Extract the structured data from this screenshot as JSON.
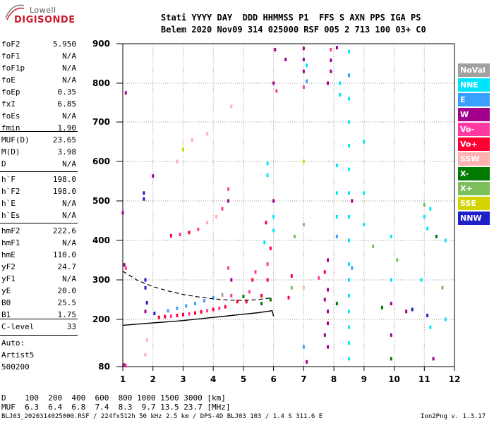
{
  "logo": {
    "line1": "Lowell",
    "line2": "DIGISONDE"
  },
  "header": {
    "line1": "Stati YYYY DAY  DDD HHMMSS P1  FFS S AXN PPS IGA PS",
    "line2": "Belem 2020 Nov09 314 025000 RSF 005 2 713 100 03+ C0"
  },
  "params_group1": [
    {
      "name": "foF2",
      "value": "5.950"
    },
    {
      "name": "foF1",
      "value": "N/A"
    },
    {
      "name": "foF1p",
      "value": "N/A"
    },
    {
      "name": "foE",
      "value": "N/A"
    },
    {
      "name": "foEp",
      "value": "0.35"
    },
    {
      "name": "fxI",
      "value": "6.85"
    },
    {
      "name": "foEs",
      "value": "N/A"
    },
    {
      "name": "fmin",
      "value": "1.90"
    }
  ],
  "params_group2": [
    {
      "name": "MUF(D)",
      "value": "23.65"
    },
    {
      "name": "M(D)",
      "value": "3.98"
    },
    {
      "name": "D",
      "value": "N/A"
    }
  ],
  "params_group3": [
    {
      "name": "h`F",
      "value": "198.0"
    },
    {
      "name": "h`F2",
      "value": "198.0"
    },
    {
      "name": "h`E",
      "value": "N/A"
    },
    {
      "name": "h`Es",
      "value": "N/A"
    }
  ],
  "params_group4": [
    {
      "name": "hmF2",
      "value": "222.6"
    },
    {
      "name": "hmF1",
      "value": "N/A"
    },
    {
      "name": "hmE",
      "value": "110.0"
    },
    {
      "name": "yF2",
      "value": "24.7"
    },
    {
      "name": "yF1",
      "value": "N/A"
    },
    {
      "name": "yE",
      "value": "20.0"
    },
    {
      "name": "B0",
      "value": "25.5"
    },
    {
      "name": "B1",
      "value": "1.75"
    }
  ],
  "params_group5": [
    {
      "name": "C-level",
      "value": "33"
    }
  ],
  "auto": {
    "line1": "Auto:",
    "line2": "Artist5",
    "line3": "500200"
  },
  "legend": [
    {
      "label": "NoVal",
      "color": "#a0a0a0"
    },
    {
      "label": "NNE",
      "color": "#00e5ff"
    },
    {
      "label": "E",
      "color": "#3aa0ff"
    },
    {
      "label": "W",
      "color": "#a0008c"
    },
    {
      "label": "Vo-",
      "color": "#ff3aa0"
    },
    {
      "label": "Vo+",
      "color": "#ff0033"
    },
    {
      "label": "SSW",
      "color": "#ffb0b0"
    },
    {
      "label": "X-",
      "color": "#007a00"
    },
    {
      "label": "X+",
      "color": "#7abf5a"
    },
    {
      "label": "SSE",
      "color": "#d4d400"
    },
    {
      "label": "NNW",
      "color": "#2020c8"
    }
  ],
  "muf_table": {
    "row1": "D    100  200  400  600  800 1000 1500 3000 [km]",
    "row2": "MUF  6.3  6.4  6.8  7.4  8.3  9.7 13.5 23.7 [MHz]"
  },
  "footer": {
    "left": "BLJ03_2020314025000.RSF / 224fx512h 50 kHz 2.5 km / DPS-4D BLJ03 103 / 1.4 S 311.6 E",
    "right": "Ion2Png v. 1.3.17"
  },
  "chart_data": {
    "type": "scatter",
    "title": "",
    "xlabel": "",
    "ylabel": "",
    "xlim": [
      1,
      12
    ],
    "ylim": [
      80,
      900
    ],
    "x_ticks": [
      "1",
      "2",
      "3",
      "4",
      "5",
      "6",
      "7",
      "8",
      "9",
      "10",
      "11",
      "12"
    ],
    "y_ticks": [
      "80",
      "200",
      "300",
      "400",
      "500",
      "600",
      "700",
      "800",
      "900"
    ],
    "grid": true,
    "legend_position": "right",
    "y_tick_values": [
      80,
      200,
      300,
      400,
      500,
      600,
      700,
      800,
      900
    ],
    "ionogram_trace_solid": {
      "name": "",
      "x": [
        1.0,
        1.5,
        2.0,
        2.5,
        3.0,
        3.5,
        4.0,
        4.5,
        5.0,
        5.5,
        5.95,
        6.0
      ],
      "y": [
        185,
        188,
        191,
        194,
        197,
        201,
        205,
        209,
        213,
        217,
        222,
        208
      ]
    },
    "ionogram_trace_dashed": {
      "name": "",
      "x": [
        1.0,
        1.5,
        2.0,
        2.5,
        3.0,
        3.5,
        4.0,
        4.5,
        5.0,
        5.5,
        5.95
      ],
      "y": [
        322,
        298,
        283,
        272,
        263,
        257,
        252,
        249,
        248,
        250,
        255
      ]
    },
    "echo_points": [
      {
        "x": 1.1,
        "y": 775,
        "color": "#a0008c"
      },
      {
        "x": 1.0,
        "y": 470,
        "color": "#a0008c"
      },
      {
        "x": 1.05,
        "y": 338,
        "color": "#a0008c"
      },
      {
        "x": 1.1,
        "y": 330,
        "color": "#ff3aa0"
      },
      {
        "x": 1.05,
        "y": 84,
        "color": "#a0008c"
      },
      {
        "x": 1.1,
        "y": 82,
        "color": "#ff3aa0"
      },
      {
        "x": 1.7,
        "y": 520,
        "color": "#2020c8"
      },
      {
        "x": 1.7,
        "y": 505,
        "color": "#2020c8"
      },
      {
        "x": 1.75,
        "y": 300,
        "color": "#2020c8"
      },
      {
        "x": 1.75,
        "y": 280,
        "color": "#2020c8"
      },
      {
        "x": 1.8,
        "y": 242,
        "color": "#2020c8"
      },
      {
        "x": 1.75,
        "y": 220,
        "color": "#a0008c"
      },
      {
        "x": 1.8,
        "y": 148,
        "color": "#ffb0b0"
      },
      {
        "x": 1.75,
        "y": 110,
        "color": "#ffb0b0"
      },
      {
        "x": 2.0,
        "y": 563,
        "color": "#a0008c"
      },
      {
        "x": 2.05,
        "y": 215,
        "color": "#2020c8"
      },
      {
        "x": 2.2,
        "y": 205,
        "color": "#ff0033"
      },
      {
        "x": 2.4,
        "y": 207,
        "color": "#ff0033"
      },
      {
        "x": 2.6,
        "y": 208,
        "color": "#ff3aa0"
      },
      {
        "x": 2.8,
        "y": 210,
        "color": "#ff0033"
      },
      {
        "x": 3.0,
        "y": 212,
        "color": "#ff0033"
      },
      {
        "x": 3.2,
        "y": 214,
        "color": "#ff3aa0"
      },
      {
        "x": 3.4,
        "y": 216,
        "color": "#ff0033"
      },
      {
        "x": 3.6,
        "y": 219,
        "color": "#ff0033"
      },
      {
        "x": 3.8,
        "y": 222,
        "color": "#ff3aa0"
      },
      {
        "x": 4.0,
        "y": 225,
        "color": "#ff0033"
      },
      {
        "x": 4.2,
        "y": 228,
        "color": "#ff3aa0"
      },
      {
        "x": 4.4,
        "y": 232,
        "color": "#ff0033"
      },
      {
        "x": 2.5,
        "y": 222,
        "color": "#3aa0ff"
      },
      {
        "x": 2.8,
        "y": 228,
        "color": "#3aa0ff"
      },
      {
        "x": 3.1,
        "y": 234,
        "color": "#3aa0ff"
      },
      {
        "x": 3.4,
        "y": 240,
        "color": "#3aa0ff"
      },
      {
        "x": 3.7,
        "y": 247,
        "color": "#3aa0ff"
      },
      {
        "x": 4.0,
        "y": 255,
        "color": "#3aa0ff"
      },
      {
        "x": 4.3,
        "y": 262,
        "color": "#a0a0a0"
      },
      {
        "x": 4.6,
        "y": 260,
        "color": "#ff3aa0"
      },
      {
        "x": 4.6,
        "y": 300,
        "color": "#a0008c"
      },
      {
        "x": 4.5,
        "y": 330,
        "color": "#ff3aa0"
      },
      {
        "x": 4.8,
        "y": 245,
        "color": "#ff0033"
      },
      {
        "x": 5.1,
        "y": 245,
        "color": "#ff0033"
      },
      {
        "x": 5.2,
        "y": 270,
        "color": "#ff3aa0"
      },
      {
        "x": 5.3,
        "y": 300,
        "color": "#ff0033"
      },
      {
        "x": 5.4,
        "y": 320,
        "color": "#ff3aa0"
      },
      {
        "x": 5.6,
        "y": 260,
        "color": "#ff0033"
      },
      {
        "x": 5.8,
        "y": 300,
        "color": "#ff0033"
      },
      {
        "x": 5.8,
        "y": 340,
        "color": "#ff3aa0"
      },
      {
        "x": 5.9,
        "y": 380,
        "color": "#ff0033"
      },
      {
        "x": 5.9,
        "y": 250,
        "color": "#007a00"
      },
      {
        "x": 5.6,
        "y": 240,
        "color": "#007a00"
      },
      {
        "x": 5.0,
        "y": 258,
        "color": "#007a00"
      },
      {
        "x": 6.0,
        "y": 425,
        "color": "#00e5ff"
      },
      {
        "x": 6.0,
        "y": 460,
        "color": "#00e5ff"
      },
      {
        "x": 5.7,
        "y": 395,
        "color": "#00e5ff"
      },
      {
        "x": 5.75,
        "y": 445,
        "color": "#ff0033"
      },
      {
        "x": 5.8,
        "y": 565,
        "color": "#00e5ff"
      },
      {
        "x": 5.8,
        "y": 595,
        "color": "#00e5ff"
      },
      {
        "x": 6.0,
        "y": 500,
        "color": "#a0008c"
      },
      {
        "x": 2.6,
        "y": 412,
        "color": "#ff0033"
      },
      {
        "x": 2.9,
        "y": 415,
        "color": "#ff3aa0"
      },
      {
        "x": 3.2,
        "y": 420,
        "color": "#ff0033"
      },
      {
        "x": 3.5,
        "y": 428,
        "color": "#ff3aa0"
      },
      {
        "x": 3.8,
        "y": 445,
        "color": "#ffb0b0"
      },
      {
        "x": 4.1,
        "y": 460,
        "color": "#ffb0b0"
      },
      {
        "x": 4.3,
        "y": 480,
        "color": "#ff3aa0"
      },
      {
        "x": 4.5,
        "y": 500,
        "color": "#a0008c"
      },
      {
        "x": 4.5,
        "y": 530,
        "color": "#ff3aa0"
      },
      {
        "x": 3.3,
        "y": 655,
        "color": "#ffb0b0"
      },
      {
        "x": 3.0,
        "y": 630,
        "color": "#d4d400"
      },
      {
        "x": 3.8,
        "y": 670,
        "color": "#ffb0b0"
      },
      {
        "x": 4.6,
        "y": 740,
        "color": "#ffb0b0"
      },
      {
        "x": 2.8,
        "y": 600,
        "color": "#ffb0b0"
      },
      {
        "x": 6.0,
        "y": 800,
        "color": "#a0008c"
      },
      {
        "x": 6.05,
        "y": 885,
        "color": "#a0008c"
      },
      {
        "x": 6.1,
        "y": 780,
        "color": "#ff3aa0"
      },
      {
        "x": 6.4,
        "y": 860,
        "color": "#a0008c"
      },
      {
        "x": 6.5,
        "y": 255,
        "color": "#ff0033"
      },
      {
        "x": 6.6,
        "y": 310,
        "color": "#ff0033"
      },
      {
        "x": 6.6,
        "y": 280,
        "color": "#7abf5a"
      },
      {
        "x": 6.7,
        "y": 410,
        "color": "#7abf5a"
      },
      {
        "x": 7.0,
        "y": 888,
        "color": "#a0008c"
      },
      {
        "x": 7.0,
        "y": 860,
        "color": "#a0008c"
      },
      {
        "x": 7.0,
        "y": 830,
        "color": "#a0008c"
      },
      {
        "x": 7.0,
        "y": 790,
        "color": "#ff3aa0"
      },
      {
        "x": 7.1,
        "y": 845,
        "color": "#00e5ff"
      },
      {
        "x": 7.1,
        "y": 805,
        "color": "#3aa0ff"
      },
      {
        "x": 7.0,
        "y": 280,
        "color": "#ffb0b0"
      },
      {
        "x": 7.0,
        "y": 130,
        "color": "#3aa0ff"
      },
      {
        "x": 7.1,
        "y": 92,
        "color": "#a0008c"
      },
      {
        "x": 7.0,
        "y": 600,
        "color": "#d4d400"
      },
      {
        "x": 7.0,
        "y": 440,
        "color": "#a0a0a0"
      },
      {
        "x": 7.5,
        "y": 305,
        "color": "#ff3aa0"
      },
      {
        "x": 7.7,
        "y": 320,
        "color": "#ff0033"
      },
      {
        "x": 7.9,
        "y": 885,
        "color": "#ff3aa0"
      },
      {
        "x": 7.9,
        "y": 858,
        "color": "#a0008c"
      },
      {
        "x": 7.8,
        "y": 800,
        "color": "#a0008c"
      },
      {
        "x": 7.9,
        "y": 830,
        "color": "#a0008c"
      },
      {
        "x": 7.8,
        "y": 350,
        "color": "#a0008c"
      },
      {
        "x": 7.8,
        "y": 275,
        "color": "#a0008c"
      },
      {
        "x": 7.7,
        "y": 250,
        "color": "#a0008c"
      },
      {
        "x": 7.8,
        "y": 220,
        "color": "#a0008c"
      },
      {
        "x": 7.8,
        "y": 190,
        "color": "#a0008c"
      },
      {
        "x": 7.7,
        "y": 160,
        "color": "#a0008c"
      },
      {
        "x": 7.8,
        "y": 130,
        "color": "#a0008c"
      },
      {
        "x": 8.1,
        "y": 890,
        "color": "#a0008c"
      },
      {
        "x": 8.2,
        "y": 800,
        "color": "#00e5ff"
      },
      {
        "x": 8.2,
        "y": 770,
        "color": "#00e5ff"
      },
      {
        "x": 8.1,
        "y": 590,
        "color": "#00e5ff"
      },
      {
        "x": 8.1,
        "y": 520,
        "color": "#00e5ff"
      },
      {
        "x": 8.1,
        "y": 460,
        "color": "#00e5ff"
      },
      {
        "x": 8.1,
        "y": 410,
        "color": "#3aa0ff"
      },
      {
        "x": 8.1,
        "y": 240,
        "color": "#007a00"
      },
      {
        "x": 8.5,
        "y": 880,
        "color": "#00e5ff"
      },
      {
        "x": 8.5,
        "y": 820,
        "color": "#3aa0ff"
      },
      {
        "x": 8.5,
        "y": 760,
        "color": "#00e5ff"
      },
      {
        "x": 8.5,
        "y": 700,
        "color": "#00e5ff"
      },
      {
        "x": 8.5,
        "y": 640,
        "color": "#00e5ff"
      },
      {
        "x": 8.5,
        "y": 580,
        "color": "#00e5ff"
      },
      {
        "x": 8.5,
        "y": 520,
        "color": "#00e5ff"
      },
      {
        "x": 8.5,
        "y": 460,
        "color": "#00e5ff"
      },
      {
        "x": 8.5,
        "y": 400,
        "color": "#00e5ff"
      },
      {
        "x": 8.5,
        "y": 340,
        "color": "#00e5ff"
      },
      {
        "x": 8.5,
        "y": 300,
        "color": "#00e5ff"
      },
      {
        "x": 8.5,
        "y": 260,
        "color": "#00e5ff"
      },
      {
        "x": 8.5,
        "y": 220,
        "color": "#00e5ff"
      },
      {
        "x": 8.5,
        "y": 180,
        "color": "#00e5ff"
      },
      {
        "x": 8.5,
        "y": 140,
        "color": "#00e5ff"
      },
      {
        "x": 8.5,
        "y": 100,
        "color": "#00e5ff"
      },
      {
        "x": 8.6,
        "y": 500,
        "color": "#a0008c"
      },
      {
        "x": 8.6,
        "y": 330,
        "color": "#3aa0ff"
      },
      {
        "x": 9.0,
        "y": 650,
        "color": "#00e5ff"
      },
      {
        "x": 9.0,
        "y": 520,
        "color": "#00e5ff"
      },
      {
        "x": 9.0,
        "y": 440,
        "color": "#00e5ff"
      },
      {
        "x": 9.3,
        "y": 385,
        "color": "#7abf5a"
      },
      {
        "x": 9.6,
        "y": 230,
        "color": "#007a00"
      },
      {
        "x": 9.9,
        "y": 410,
        "color": "#00e5ff"
      },
      {
        "x": 9.9,
        "y": 300,
        "color": "#00e5ff"
      },
      {
        "x": 9.9,
        "y": 240,
        "color": "#a0008c"
      },
      {
        "x": 9.9,
        "y": 160,
        "color": "#a0008c"
      },
      {
        "x": 9.9,
        "y": 100,
        "color": "#007a00"
      },
      {
        "x": 10.1,
        "y": 350,
        "color": "#7abf5a"
      },
      {
        "x": 10.4,
        "y": 220,
        "color": "#a0008c"
      },
      {
        "x": 10.6,
        "y": 225,
        "color": "#2020c8"
      },
      {
        "x": 11.0,
        "y": 490,
        "color": "#7abf5a"
      },
      {
        "x": 11.0,
        "y": 460,
        "color": "#00e5ff"
      },
      {
        "x": 11.1,
        "y": 430,
        "color": "#00e5ff"
      },
      {
        "x": 11.2,
        "y": 480,
        "color": "#00e5ff"
      },
      {
        "x": 10.9,
        "y": 300,
        "color": "#00e5ff"
      },
      {
        "x": 11.1,
        "y": 210,
        "color": "#2020c8"
      },
      {
        "x": 11.2,
        "y": 180,
        "color": "#00e5ff"
      },
      {
        "x": 11.3,
        "y": 100,
        "color": "#a0008c"
      },
      {
        "x": 11.4,
        "y": 410,
        "color": "#007a00"
      },
      {
        "x": 11.6,
        "y": 280,
        "color": "#7abf5a"
      },
      {
        "x": 11.7,
        "y": 200,
        "color": "#00e5ff"
      },
      {
        "x": 11.7,
        "y": 400,
        "color": "#00e5ff"
      }
    ]
  }
}
